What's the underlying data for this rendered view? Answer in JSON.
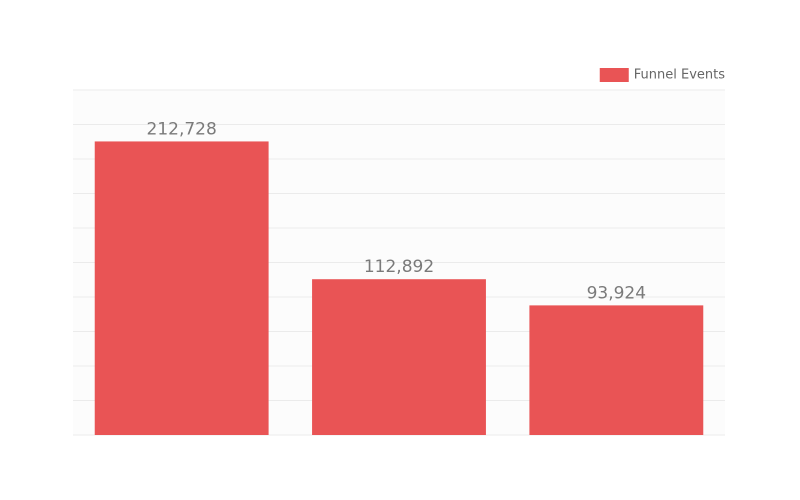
{
  "chart_data": {
    "type": "bar",
    "categories": [
      null,
      null,
      null
    ],
    "series": [
      {
        "name": "Funnel Events",
        "color": "#e95455",
        "values": [
          212728,
          112892,
          93924
        ],
        "value_labels": [
          "212,728",
          "112,892",
          "93,924"
        ]
      }
    ],
    "ylim": [
      0,
      250000
    ],
    "yticks": [
      0,
      25000,
      50000,
      75000,
      100000,
      125000,
      150000,
      175000,
      200000,
      225000,
      250000
    ],
    "show_tick_labels": false,
    "grid": true,
    "legend": "top-right"
  }
}
